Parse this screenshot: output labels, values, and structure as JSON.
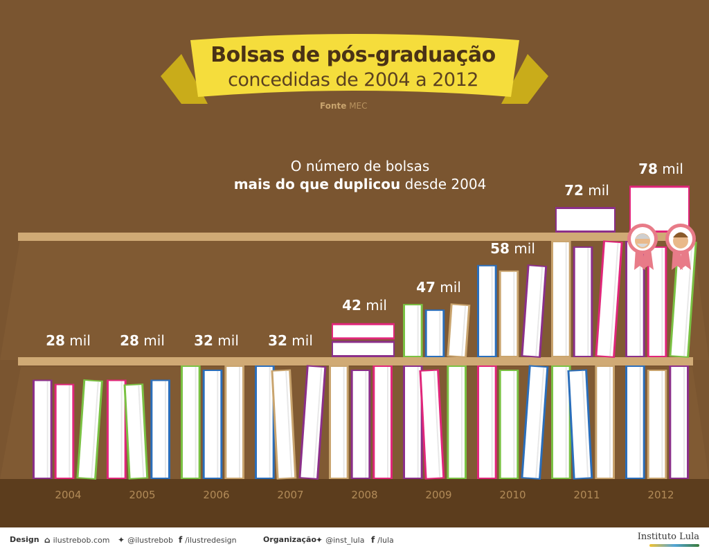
{
  "header": {
    "title_line1": "Bolsas de pós-graduação",
    "title_line2": "concedidas de 2004 a 2012",
    "source_label": "Fonte",
    "source_value": "MEC"
  },
  "headline": {
    "line1": "O número de bolsas",
    "line2_bold": "mais do que duplicou",
    "line2_rest": " desde 2004"
  },
  "chart_data": {
    "type": "bar",
    "categories": [
      "2004",
      "2005",
      "2006",
      "2007",
      "2008",
      "2009",
      "2010",
      "2011",
      "2012"
    ],
    "values": [
      28,
      28,
      32,
      32,
      42,
      47,
      58,
      72,
      78
    ],
    "unit_suffix": "mil",
    "value_labels": [
      "28 mil",
      "28 mil",
      "32 mil",
      "32 mil",
      "42 mil",
      "47 mil",
      "58 mil",
      "72 mil",
      "78 mil"
    ],
    "title": "Bolsas de pós-graduação concedidas de 2004 a 2012",
    "xlabel": "",
    "ylabel": "",
    "grid": false,
    "colors": {
      "background": "#7a5530",
      "shelf": "#d0aa75",
      "floor": "#5c3d1d",
      "book_page": "#ffffff",
      "banner": "#f5dd3c"
    }
  },
  "footer": {
    "design_label": "Design",
    "design_site": "ilustrebob.com",
    "design_twitter": "@ilustrebob",
    "design_facebook": "/ilustredesign",
    "org_label": "Organização",
    "org_twitter": "@inst_lula",
    "org_facebook": "/lula",
    "logo_text": "Instituto Lula"
  }
}
